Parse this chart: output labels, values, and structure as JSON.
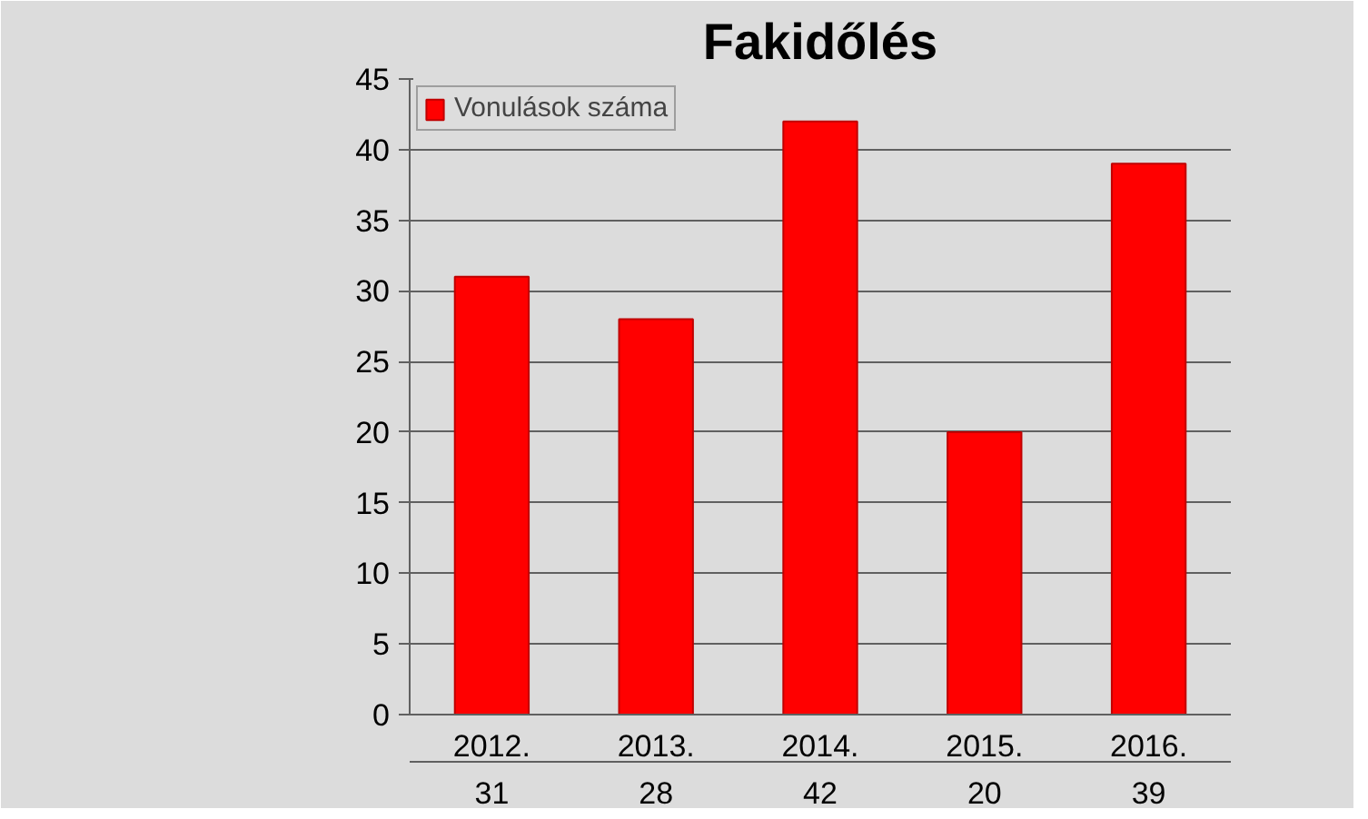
{
  "chart_data": {
    "type": "bar",
    "title": "Fakidőlés",
    "categories": [
      "2012.",
      "2013.",
      "2014.",
      "2015.",
      "2016."
    ],
    "series": [
      {
        "name": "Vonulások száma",
        "color": "#ff0000",
        "values": [
          31,
          28,
          42,
          20,
          39
        ]
      }
    ],
    "ylim": [
      0,
      45
    ],
    "yticks": [
      0,
      5,
      10,
      15,
      20,
      25,
      30,
      35,
      40,
      45
    ],
    "grid": "y",
    "legend": "top left",
    "data_labels": true
  }
}
